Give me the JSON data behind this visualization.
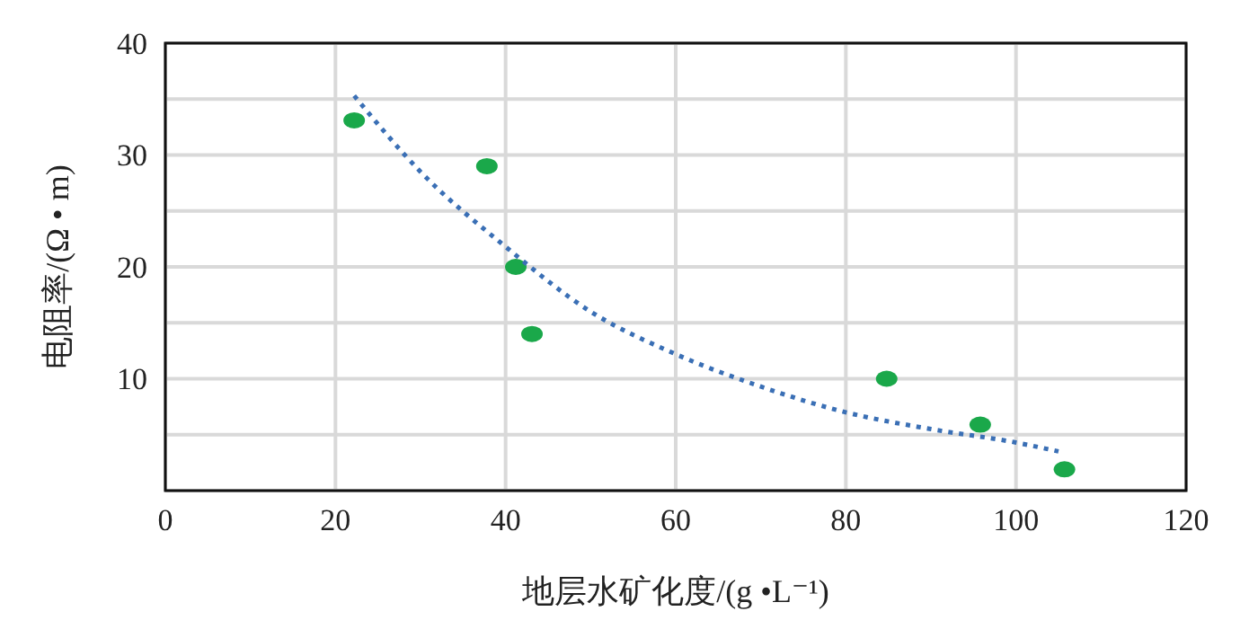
{
  "chart_data": {
    "type": "scatter",
    "xlabel": "地层水矿化度/(g •L⁻¹)",
    "ylabel": "电阻率/(Ω • m)",
    "xlim": [
      0,
      120
    ],
    "xticks": [
      0,
      20,
      40,
      60,
      80,
      100,
      120
    ],
    "ylim": [
      0,
      40
    ],
    "yticks": [
      {
        "value": 0,
        "label": null
      },
      {
        "value": 5,
        "label": null
      },
      10,
      {
        "value": 15,
        "label": null
      },
      20,
      {
        "value": 25,
        "label": null
      },
      30,
      {
        "value": 35,
        "label": null
      },
      40
    ],
    "grid": true,
    "marker": "circle",
    "series": [
      {
        "color": "#1aa84a",
        "x": [
          22.2,
          37.8,
          41.2,
          43.1,
          84.8,
          95.8,
          105.7
        ],
        "values": [
          33.1,
          29,
          20,
          14,
          10,
          5.9,
          1.9
        ]
      },
      {
        "type": "line",
        "color": "#3a6fb5",
        "line_style": "dotted",
        "marker": "none",
        "x": [
          22.2,
          30,
          40,
          50,
          60,
          70,
          80,
          90,
          100,
          105
        ],
        "values": [
          35.3,
          28.5,
          21.8,
          16,
          12.2,
          9.3,
          7,
          5.5,
          4.3,
          3.5
        ]
      }
    ]
  }
}
